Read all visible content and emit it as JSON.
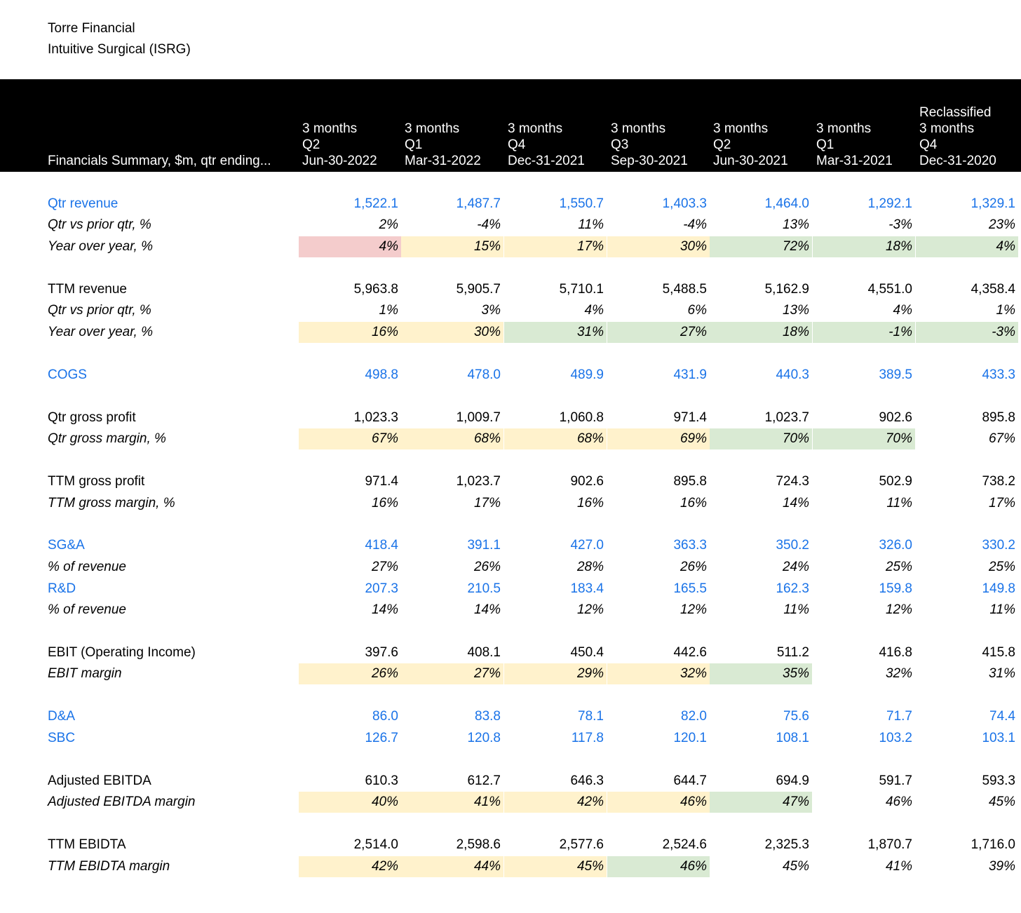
{
  "firm": {
    "name": "Torre Financial",
    "company": "Intuitive Surgical (ISRG)"
  },
  "header": {
    "label": "Financials Summary, $m, qtr ending...",
    "columns": [
      {
        "lines": [
          "3 months",
          "Q2",
          "Jun-30-2022"
        ]
      },
      {
        "lines": [
          "3 months",
          "Q1",
          "Mar-31-2022"
        ]
      },
      {
        "lines": [
          "3 months",
          "Q4",
          "Dec-31-2021"
        ]
      },
      {
        "lines": [
          "3 months",
          "Q3",
          "Sep-30-2021"
        ]
      },
      {
        "lines": [
          "3 months",
          "Q2",
          "Jun-30-2021"
        ]
      },
      {
        "lines": [
          "3 months",
          "Q1",
          "Mar-31-2021"
        ]
      },
      {
        "lines": [
          "Reclassified",
          "3 months",
          "Q4",
          "Dec-31-2020"
        ]
      }
    ]
  },
  "colors": {
    "input_blue": "#1a73e8",
    "red": "#f4cccc",
    "yellow": "#fff2cc",
    "green": "#d9ead3"
  },
  "table": {
    "rows": [
      {
        "label": "Qtr revenue",
        "style": "blue",
        "values": [
          "1,522.1",
          "1,487.7",
          "1,550.7",
          "1,403.3",
          "1,464.0",
          "1,292.1",
          "1,329.1"
        ]
      },
      {
        "label": "Qtr vs prior qtr, %",
        "style": "pct",
        "values": [
          "2%",
          "-4%",
          "11%",
          "-4%",
          "13%",
          "-3%",
          "23%"
        ]
      },
      {
        "label": "Year over year, %",
        "style": "pct",
        "values": [
          "4%",
          "15%",
          "17%",
          "30%",
          "72%",
          "18%",
          "4%"
        ],
        "fills": [
          "red",
          "yellow",
          "yellow",
          "yellow",
          "green",
          "green",
          "green"
        ]
      },
      {
        "label": "TTM revenue",
        "style": "plain",
        "values": [
          "5,963.8",
          "5,905.7",
          "5,710.1",
          "5,488.5",
          "5,162.9",
          "4,551.0",
          "4,358.4"
        ]
      },
      {
        "label": "Qtr vs prior qtr, %",
        "style": "pct",
        "values": [
          "1%",
          "3%",
          "4%",
          "6%",
          "13%",
          "4%",
          "1%"
        ]
      },
      {
        "label": "Year over year, %",
        "style": "pct",
        "values": [
          "16%",
          "30%",
          "31%",
          "27%",
          "18%",
          "-1%",
          "-3%"
        ],
        "fills": [
          "yellow",
          "yellow",
          "green",
          "green",
          "green",
          "green",
          "green"
        ]
      },
      {
        "label": "COGS",
        "style": "blue",
        "values": [
          "498.8",
          "478.0",
          "489.9",
          "431.9",
          "440.3",
          "389.5",
          "433.3"
        ]
      },
      {
        "label": "Qtr gross profit",
        "style": "plain",
        "values": [
          "1,023.3",
          "1,009.7",
          "1,060.8",
          "971.4",
          "1,023.7",
          "902.6",
          "895.8"
        ]
      },
      {
        "label": "Qtr gross margin, %",
        "style": "pct",
        "values": [
          "67%",
          "68%",
          "68%",
          "69%",
          "70%",
          "70%",
          "67%"
        ],
        "fills": [
          "yellow",
          "yellow",
          "yellow",
          "yellow",
          "green",
          "green",
          ""
        ]
      },
      {
        "label": "TTM gross profit",
        "style": "plain",
        "values": [
          "971.4",
          "1,023.7",
          "902.6",
          "895.8",
          "724.3",
          "502.9",
          "738.2"
        ]
      },
      {
        "label": "TTM gross margin, %",
        "style": "pct",
        "values": [
          "16%",
          "17%",
          "16%",
          "16%",
          "14%",
          "11%",
          "17%"
        ]
      },
      {
        "label": "SG&A",
        "style": "blue",
        "values": [
          "418.4",
          "391.1",
          "427.0",
          "363.3",
          "350.2",
          "326.0",
          "330.2"
        ]
      },
      {
        "label": "% of revenue",
        "style": "pct",
        "values": [
          "27%",
          "26%",
          "28%",
          "26%",
          "24%",
          "25%",
          "25%"
        ]
      },
      {
        "label": "R&D",
        "style": "blue",
        "values": [
          "207.3",
          "210.5",
          "183.4",
          "165.5",
          "162.3",
          "159.8",
          "149.8"
        ]
      },
      {
        "label": "% of revenue",
        "style": "pct",
        "values": [
          "14%",
          "14%",
          "12%",
          "12%",
          "11%",
          "12%",
          "11%"
        ]
      },
      {
        "label": "EBIT (Operating Income)",
        "style": "plain",
        "values": [
          "397.6",
          "408.1",
          "450.4",
          "442.6",
          "511.2",
          "416.8",
          "415.8"
        ]
      },
      {
        "label": "EBIT margin",
        "style": "pct",
        "values": [
          "26%",
          "27%",
          "29%",
          "32%",
          "35%",
          "32%",
          "31%"
        ],
        "fills": [
          "yellow",
          "yellow",
          "yellow",
          "yellow",
          "green",
          "",
          ""
        ]
      },
      {
        "label": "D&A",
        "style": "blue",
        "values": [
          "86.0",
          "83.8",
          "78.1",
          "82.0",
          "75.6",
          "71.7",
          "74.4"
        ]
      },
      {
        "label": "SBC",
        "style": "blue",
        "values": [
          "126.7",
          "120.8",
          "117.8",
          "120.1",
          "108.1",
          "103.2",
          "103.1"
        ]
      },
      {
        "label": "Adjusted EBITDA",
        "style": "plain",
        "values": [
          "610.3",
          "612.7",
          "646.3",
          "644.7",
          "694.9",
          "591.7",
          "593.3"
        ]
      },
      {
        "label": "Adjusted EBITDA margin",
        "style": "pct",
        "values": [
          "40%",
          "41%",
          "42%",
          "46%",
          "47%",
          "46%",
          "45%"
        ],
        "fills": [
          "yellow",
          "yellow",
          "yellow",
          "yellow",
          "green",
          "",
          ""
        ]
      },
      {
        "label": "TTM EBIDTA",
        "style": "plain",
        "values": [
          "2,514.0",
          "2,598.6",
          "2,577.6",
          "2,524.6",
          "2,325.3",
          "1,870.7",
          "1,716.0"
        ]
      },
      {
        "label": "TTM EBIDTA margin",
        "style": "pct",
        "values": [
          "42%",
          "44%",
          "45%",
          "46%",
          "45%",
          "41%",
          "39%"
        ],
        "fills": [
          "yellow",
          "yellow",
          "yellow",
          "green",
          "",
          "",
          ""
        ]
      }
    ]
  }
}
